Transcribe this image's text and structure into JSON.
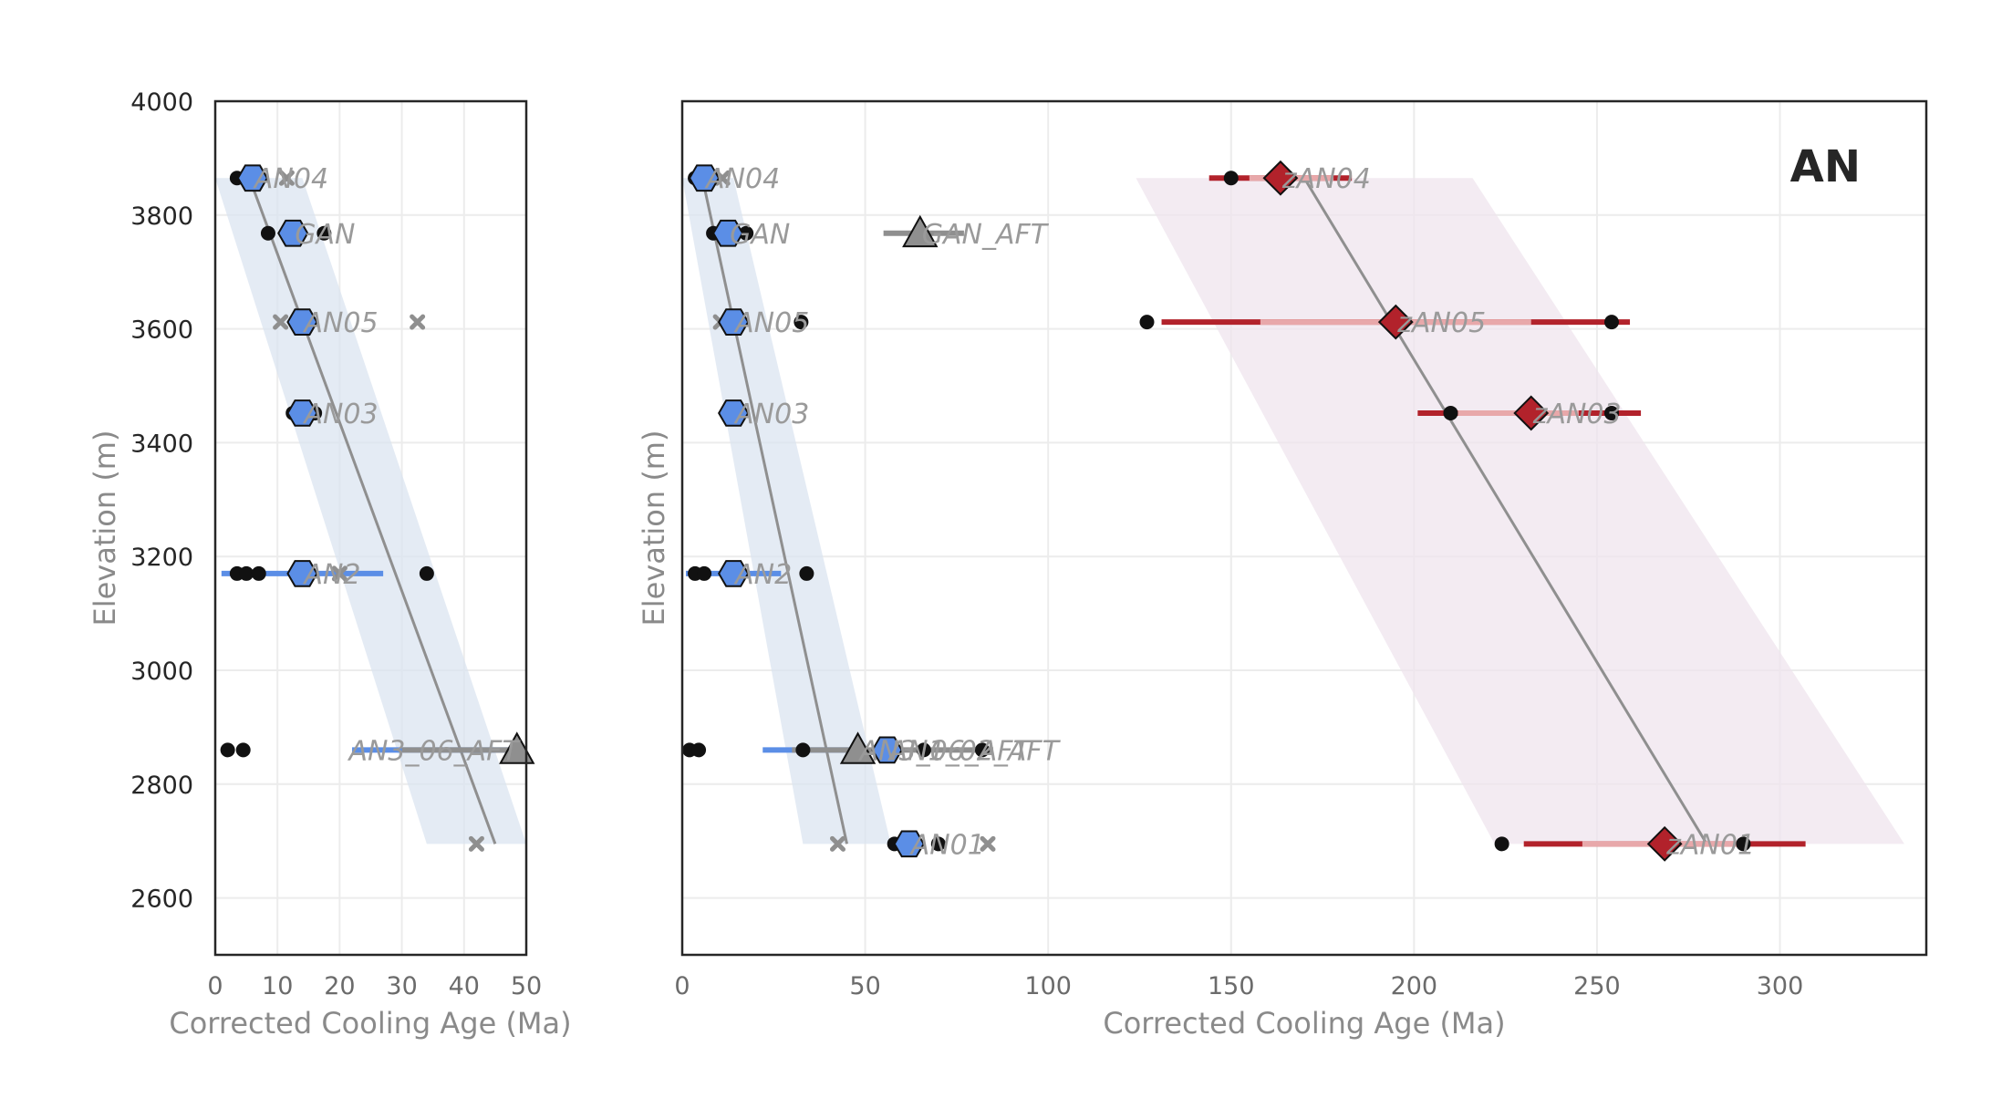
{
  "chart_data": [
    {
      "type": "scatter",
      "panel": "left",
      "xlabel": "Corrected Cooling Age (Ma)",
      "ylabel": "Elevation (m)",
      "xlim": [
        0,
        50
      ],
      "ylim": [
        2500,
        4000
      ],
      "xticks": [
        "0",
        "10",
        "20",
        "30",
        "40",
        "50"
      ],
      "yticks": [
        "2600",
        "2800",
        "3000",
        "3200",
        "3400",
        "3600",
        "3800",
        "4000"
      ],
      "grid": true,
      "colors": {
        "ahe": "#5b8ee6",
        "aft": "#8f8f8f",
        "regression": "#8f8f8f",
        "band": "#dbe4f0"
      },
      "regression": {
        "x": [
          5.5,
          45
        ],
        "y": [
          3865,
          2695
        ]
      },
      "confidence_band": {
        "y": [
          3865,
          2695
        ],
        "x_low": [
          0,
          34
        ],
        "x_high": [
          14,
          50
        ]
      },
      "error_bars": [
        {
          "y": 3170,
          "x": [
            1,
            27
          ],
          "color": "#5b8ee6"
        },
        {
          "y": 2860,
          "x": [
            22,
            50
          ],
          "color": "#5b8ee6"
        },
        {
          "y": 2860,
          "x": [
            30,
            50
          ],
          "color": "#8f8f8f"
        }
      ],
      "grains": [
        {
          "x": 3.5,
          "y": 3865
        },
        {
          "x": 8.5,
          "y": 3768
        },
        {
          "x": 17.5,
          "y": 3768
        },
        {
          "x": 12.5,
          "y": 3452
        },
        {
          "x": 16.0,
          "y": 3452
        },
        {
          "x": 3.5,
          "y": 3170
        },
        {
          "x": 5.0,
          "y": 3170
        },
        {
          "x": 7.0,
          "y": 3170
        },
        {
          "x": 34.0,
          "y": 3170
        },
        {
          "x": 2.0,
          "y": 2860
        },
        {
          "x": 4.5,
          "y": 2860
        }
      ],
      "excluded_grains": [
        {
          "x": 11.5,
          "y": 3865
        },
        {
          "x": 10.5,
          "y": 3612
        },
        {
          "x": 32.5,
          "y": 3612
        },
        {
          "x": 20.0,
          "y": 3170
        },
        {
          "x": 42.0,
          "y": 2695
        }
      ],
      "samples": [
        {
          "label": "AN04",
          "x": 6.0,
          "y": 3865,
          "marker": "hexagon",
          "color": "#5b8ee6"
        },
        {
          "label": "GAN",
          "x": 12.5,
          "y": 3768,
          "marker": "hexagon",
          "color": "#5b8ee6"
        },
        {
          "label": "AN05",
          "x": 14.0,
          "y": 3612,
          "marker": "hexagon",
          "color": "#5b8ee6"
        },
        {
          "label": "AN03",
          "x": 14.0,
          "y": 3452,
          "marker": "hexagon",
          "color": "#5b8ee6"
        },
        {
          "label": "AN2",
          "x": 14.0,
          "y": 3170,
          "marker": "hexagon",
          "color": "#5b8ee6"
        },
        {
          "label": "AN3_06_AFT",
          "x": 48.5,
          "y": 2860,
          "marker": "triangle",
          "color": "#8f8f8f"
        }
      ]
    },
    {
      "type": "scatter",
      "panel": "right",
      "xlabel": "Corrected Cooling Age (Ma)",
      "ylabel": "Elevation (m)",
      "xlim": [
        0,
        340
      ],
      "ylim": [
        2500,
        4000
      ],
      "xticks": [
        "0",
        "50",
        "100",
        "150",
        "200",
        "250",
        "300"
      ],
      "grid": true,
      "panel_tag": "AN",
      "colors": {
        "ahe": "#5b8ee6",
        "aft": "#8f8f8f",
        "zhe": "#b2222b",
        "zhe_light": "#e8a8aa",
        "regression": "#8f8f8f",
        "band_ahe": "#dbe4f0",
        "band_zhe": "#efe4ee"
      },
      "regressions": [
        {
          "x": [
            5.5,
            45
          ],
          "y": [
            3865,
            2695
          ]
        },
        {
          "x": [
            170,
            280
          ],
          "y": [
            3865,
            2695
          ]
        }
      ],
      "confidence_bands": [
        {
          "y": [
            3865,
            2695
          ],
          "x_low": [
            0,
            33
          ],
          "x_high": [
            14,
            57
          ],
          "color": "#dbe4f0"
        },
        {
          "y": [
            3865,
            2695
          ],
          "x_low": [
            124,
            222
          ],
          "x_high": [
            216,
            334
          ],
          "color": "#efe4ee"
        }
      ],
      "error_bars": [
        {
          "y": 3865,
          "x": [
            144,
            183
          ],
          "color": "#b2222b"
        },
        {
          "y": 3865,
          "x": [
            155,
            178
          ],
          "color": "#e8a8aa"
        },
        {
          "y": 3612,
          "x": [
            131,
            259
          ],
          "color": "#b2222b"
        },
        {
          "y": 3612,
          "x": [
            158,
            232
          ],
          "color": "#e8a8aa"
        },
        {
          "y": 3452,
          "x": [
            201,
            262
          ],
          "color": "#b2222b"
        },
        {
          "y": 3452,
          "x": [
            212,
            245
          ],
          "color": "#e8a8aa"
        },
        {
          "y": 2695,
          "x": [
            230,
            307
          ],
          "color": "#b2222b"
        },
        {
          "y": 2695,
          "x": [
            246,
            290
          ],
          "color": "#e8a8aa"
        },
        {
          "y": 3768,
          "x": [
            55,
            77
          ],
          "color": "#8f8f8f"
        },
        {
          "y": 3170,
          "x": [
            1,
            27
          ],
          "color": "#5b8ee6"
        },
        {
          "y": 2860,
          "x": [
            22,
            50
          ],
          "color": "#5b8ee6"
        },
        {
          "y": 2860,
          "x": [
            30,
            85
          ],
          "color": "#8f8f8f"
        }
      ],
      "grains": [
        {
          "x": 3.5,
          "y": 3865
        },
        {
          "x": 8.5,
          "y": 3768
        },
        {
          "x": 17.5,
          "y": 3768
        },
        {
          "x": 32.5,
          "y": 3612
        },
        {
          "x": 3.5,
          "y": 3170
        },
        {
          "x": 6.0,
          "y": 3170
        },
        {
          "x": 34.0,
          "y": 3170
        },
        {
          "x": 2.0,
          "y": 2860
        },
        {
          "x": 4.5,
          "y": 2860
        },
        {
          "x": 33.0,
          "y": 2860
        },
        {
          "x": 66.0,
          "y": 2860
        },
        {
          "x": 82.0,
          "y": 2860
        },
        {
          "x": 58.0,
          "y": 2695
        },
        {
          "x": 70.0,
          "y": 2695
        },
        {
          "x": 150.0,
          "y": 3865
        },
        {
          "x": 127.0,
          "y": 3612
        },
        {
          "x": 254.0,
          "y": 3612
        },
        {
          "x": 210.0,
          "y": 3452
        },
        {
          "x": 254.0,
          "y": 3452
        },
        {
          "x": 224.0,
          "y": 2695
        },
        {
          "x": 290.0,
          "y": 2695
        }
      ],
      "excluded_grains": [
        {
          "x": 11.0,
          "y": 3865
        },
        {
          "x": 10.5,
          "y": 3612
        },
        {
          "x": 42.5,
          "y": 2695
        },
        {
          "x": 83.5,
          "y": 2695
        }
      ],
      "samples": [
        {
          "label": "AN04",
          "x": 6.0,
          "y": 3865,
          "marker": "hexagon",
          "color": "#5b8ee6"
        },
        {
          "label": "GAN",
          "x": 12.5,
          "y": 3768,
          "marker": "hexagon",
          "color": "#5b8ee6"
        },
        {
          "label": "GAN_AFT",
          "x": 65.0,
          "y": 3768,
          "marker": "triangle",
          "color": "#8f8f8f"
        },
        {
          "label": "AN05",
          "x": 14.0,
          "y": 3612,
          "marker": "hexagon",
          "color": "#5b8ee6"
        },
        {
          "label": "AN03",
          "x": 14.0,
          "y": 3452,
          "marker": "hexagon",
          "color": "#5b8ee6"
        },
        {
          "label": "AN2",
          "x": 14.0,
          "y": 3170,
          "marker": "hexagon",
          "color": "#5b8ee6"
        },
        {
          "label": "AN3_06_AFT",
          "x": 48.0,
          "y": 2860,
          "marker": "triangle",
          "color": "#8f8f8f"
        },
        {
          "label": "AN1_02_AFT",
          "x": 56.0,
          "y": 2860,
          "marker": "hexagon",
          "color": "#5b8ee6"
        },
        {
          "label": "AN01",
          "x": 62.0,
          "y": 2695,
          "marker": "hexagon",
          "color": "#5b8ee6"
        },
        {
          "label": "zAN04",
          "x": 163.5,
          "y": 3865,
          "marker": "diamond",
          "color": "#b2222b"
        },
        {
          "label": "zAN05",
          "x": 195.0,
          "y": 3612,
          "marker": "diamond",
          "color": "#b2222b"
        },
        {
          "label": "zAN03",
          "x": 232.0,
          "y": 3452,
          "marker": "diamond",
          "color": "#b2222b"
        },
        {
          "label": "zAN01",
          "x": 268.5,
          "y": 2695,
          "marker": "diamond",
          "color": "#b2222b"
        }
      ]
    }
  ]
}
